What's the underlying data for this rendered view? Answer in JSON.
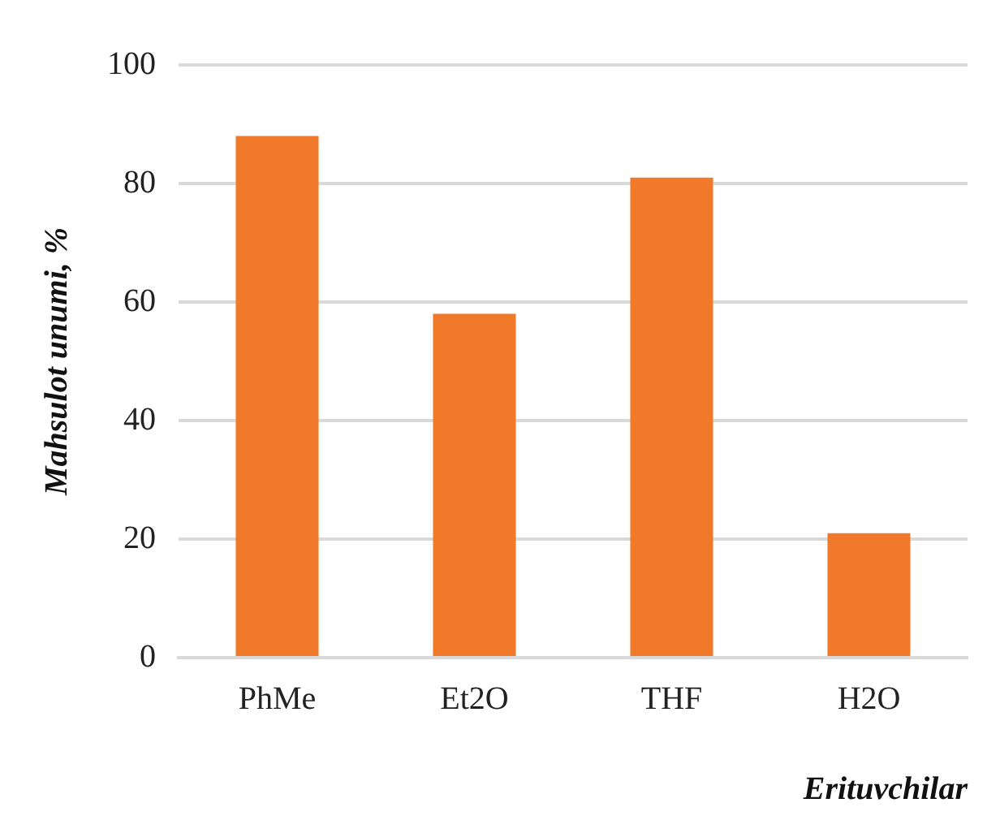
{
  "chart_data": {
    "type": "bar",
    "xlabel": "Erituvchilar",
    "ylabel": "Mahsulot unumi, %",
    "categories": [
      "PhMe",
      "Et2O",
      "THF",
      "H2O"
    ],
    "values": [
      88,
      58,
      81,
      21
    ],
    "color": "#f07a2a",
    "ylim": [
      0,
      100
    ],
    "yticks": [
      0,
      20,
      40,
      60,
      80,
      100
    ],
    "grid": "y",
    "legend": false
  }
}
